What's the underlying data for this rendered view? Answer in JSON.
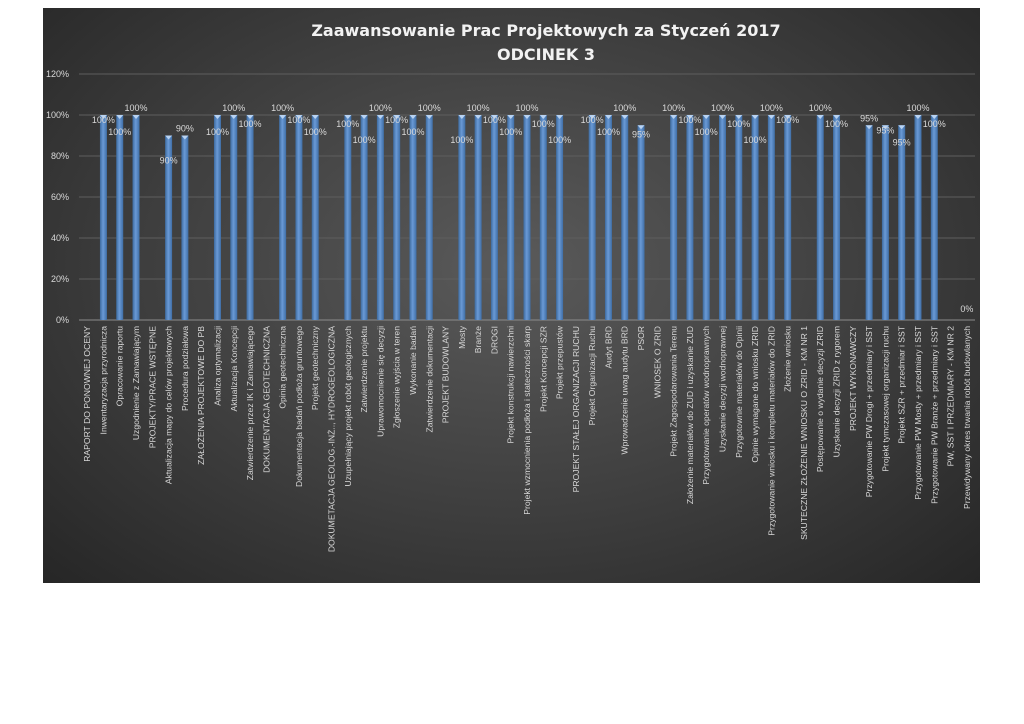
{
  "chart_data": {
    "type": "bar",
    "title": [
      "Zaawansowanie Prac Projektowych za Styczeń 2017",
      "ODCINEK 3"
    ],
    "xlabel": "",
    "ylabel": "",
    "ylim": [
      0,
      120
    ],
    "yticks": [
      "0%",
      "20%",
      "40%",
      "60%",
      "80%",
      "100%",
      "120%"
    ],
    "grid": true,
    "legend": "none",
    "bar_color": "#4f81bd",
    "categories": [
      "RAPORT DO PONOWNEJ OCENY",
      "Inwentaryzacja przyrodnicza",
      "Opracowanie raportu",
      "Uzgodnienie z Zamawiającym",
      "PROJEKTY/PRACE WSTĘPNE",
      "Aktualizacja mapy do celów projektowych",
      "Procedura podziałowa",
      "ZAŁOŻENIA PROJEKTOWE DO PB",
      "Analiza optymalizacji",
      "Aktualizacja Koncepcji",
      "Zatwierdzenie przez IK i Zamawiającego",
      "DOKUMENTACJA GEOTECHNICZNA",
      "Opinia geotechniczna",
      "Dokumentacja badań podłoża gruntowego",
      "Projekt geotechniczny",
      "DOKUMETACJA GEOLOG.-INŻ.., HYDROGEOLOGICZNA",
      "Uzupełniający projekt robót geologicznych",
      "Zatwierdzenie projektu",
      "Uprawomocnienie się decyzji",
      "Zgłoszenie wyjścia w teren",
      "Wykonanie badań",
      "Zatwierdzenie dokumentacji",
      "PROJEKT BUDOWLANY",
      "Mosty",
      "Branże",
      "DROGI",
      "Projekt konstrukcji nawierzchni",
      "Projekt wzmocnienia podłoża i stateczności skarp",
      "Projekt Koncepcji SZR",
      "Projekt przepustów",
      "PROJEKT STAŁEJ ORGANIZACJI RUCHU",
      "Projekt Organizacji Ruchu",
      "Audyt BRD",
      "Wprowadzenie uwag audytu BRD",
      "PSOR",
      "WNIOSEK O ZRID",
      "Projekt Zagospodarowania Terenu",
      "Założenie materiałów do ZUD i uzyskanie ZUD",
      "Przygotowanie operatów wodnoprawnych",
      "Uzyskanie decyzji wodnoprawnej",
      "Przygotownie materiałów do Opinii",
      "Opinie wymagane do wniosku ZRID",
      "Przygotowanie wniosku i kompletu materiałów do ZRID",
      "Złożenie wniosku",
      "SKUTECZNE ZŁOŻENIE WNIOSKU O ZRID - KM NR 1",
      "Postępowanie o wydanie decyzji ZRID",
      "Uzyskanie decyzji ZRID z rygorem",
      "PROJEKT WYKONAWCZY",
      "Przygotowanie PW Drogi + przedmiary i SST",
      "Projekt tymczasowej organizacji ruchu",
      "Projekt SZR + przedmiar i SST",
      "Przygotowanie PW Mosty + przedmiary i SST",
      "Przygotowanie PW Branże + przedmiary i SST",
      "PW, SST I PRZEDMIARY - KM NR 2",
      "Przewidywany okres trwania robót budowlanych"
    ],
    "values": [
      null,
      100,
      100,
      100,
      null,
      90,
      90,
      null,
      100,
      100,
      100,
      null,
      100,
      100,
      100,
      null,
      100,
      100,
      100,
      100,
      100,
      100,
      null,
      100,
      100,
      100,
      100,
      100,
      100,
      100,
      null,
      100,
      100,
      100,
      95,
      null,
      100,
      100,
      100,
      100,
      100,
      100,
      100,
      100,
      null,
      100,
      100,
      null,
      95,
      95,
      95,
      100,
      100,
      null,
      0
    ],
    "data_labels": [
      "",
      "100%",
      "100%",
      "100%",
      "",
      "90%",
      "90%",
      "",
      "100%",
      "100%",
      "100%",
      "",
      "100%",
      "100%",
      "100%",
      "",
      "100%",
      "100%",
      "100%",
      "100%",
      "100%",
      "100%",
      "",
      "100%",
      "100%",
      "100%",
      "100%",
      "100%",
      "100%",
      "100%",
      "",
      "100%",
      "100%",
      "100%",
      "95%",
      "",
      "100%",
      "100%",
      "100%",
      "100%",
      "100%",
      "100%",
      "100%",
      "100%",
      "",
      "100%",
      "100%",
      "",
      "95%",
      "95%",
      "95%",
      "100%",
      "100%",
      "",
      "0%"
    ]
  }
}
